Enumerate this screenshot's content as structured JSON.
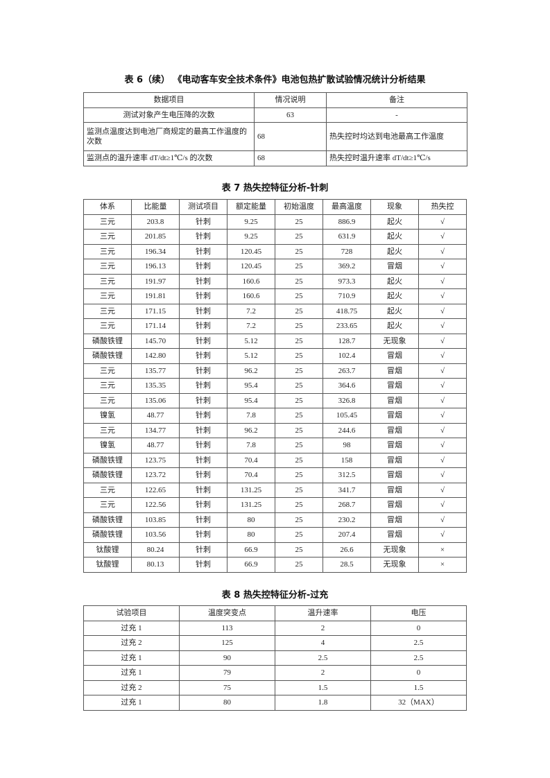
{
  "table6": {
    "title": "表 6（续） 《电动客车安全技术条件》电池包热扩散试验情况统计分析结果",
    "headers": [
      "数据项目",
      "情况说明",
      "备注"
    ],
    "rows": [
      [
        "测试对象产生电压降的次数",
        "63",
        "-"
      ],
      [
        "监测点温度达到电池厂商规定的最高工作温度的次数",
        "68",
        "热失控时均达到电池最高工作温度"
      ],
      [
        "监测点的温升速率 dT/dt≥1℃/s 的次数",
        "68",
        "热失控时温升速率 dT/dt≥1℃/s"
      ]
    ]
  },
  "table7": {
    "title": "表 7 热失控特征分析-针刺",
    "headers": [
      "体系",
      "比能量",
      "测试项目",
      "额定能量",
      "初始温度",
      "最高温度",
      "现象",
      "热失控"
    ],
    "rows": [
      [
        "三元",
        "203.8",
        "针刺",
        "9.25",
        "25",
        "886.9",
        "起火",
        "√"
      ],
      [
        "三元",
        "201.85",
        "针刺",
        "9.25",
        "25",
        "631.9",
        "起火",
        "√"
      ],
      [
        "三元",
        "196.34",
        "针刺",
        "120.45",
        "25",
        "728",
        "起火",
        "√"
      ],
      [
        "三元",
        "196.13",
        "针刺",
        "120.45",
        "25",
        "369.2",
        "冒烟",
        "√"
      ],
      [
        "三元",
        "191.97",
        "针刺",
        "160.6",
        "25",
        "973.3",
        "起火",
        "√"
      ],
      [
        "三元",
        "191.81",
        "针刺",
        "160.6",
        "25",
        "710.9",
        "起火",
        "√"
      ],
      [
        "三元",
        "171.15",
        "针刺",
        "7.2",
        "25",
        "418.75",
        "起火",
        "√"
      ],
      [
        "三元",
        "171.14",
        "针刺",
        "7.2",
        "25",
        "233.65",
        "起火",
        "√"
      ],
      [
        "磷酸铁锂",
        "145.70",
        "针刺",
        "5.12",
        "25",
        "128.7",
        "无现象",
        "√"
      ],
      [
        "磷酸铁锂",
        "142.80",
        "针刺",
        "5.12",
        "25",
        "102.4",
        "冒烟",
        "√"
      ],
      [
        "三元",
        "135.77",
        "针刺",
        "96.2",
        "25",
        "263.7",
        "冒烟",
        "√"
      ],
      [
        "三元",
        "135.35",
        "针刺",
        "95.4",
        "25",
        "364.6",
        "冒烟",
        "√"
      ],
      [
        "三元",
        "135.06",
        "针刺",
        "95.4",
        "25",
        "326.8",
        "冒烟",
        "√"
      ],
      [
        "镍氢",
        "48.77",
        "针刺",
        "7.8",
        "25",
        "105.45",
        "冒烟",
        "√"
      ],
      [
        "三元",
        "134.77",
        "针刺",
        "96.2",
        "25",
        "244.6",
        "冒烟",
        "√"
      ],
      [
        "镍氢",
        "48.77",
        "针刺",
        "7.8",
        "25",
        "98",
        "冒烟",
        "√"
      ],
      [
        "磷酸铁锂",
        "123.75",
        "针刺",
        "70.4",
        "25",
        "158",
        "冒烟",
        "√"
      ],
      [
        "磷酸铁锂",
        "123.72",
        "针刺",
        "70.4",
        "25",
        "312.5",
        "冒烟",
        "√"
      ],
      [
        "三元",
        "122.65",
        "针刺",
        "131.25",
        "25",
        "341.7",
        "冒烟",
        "√"
      ],
      [
        "三元",
        "122.56",
        "针刺",
        "131.25",
        "25",
        "268.7",
        "冒烟",
        "√"
      ],
      [
        "磷酸铁锂",
        "103.85",
        "针刺",
        "80",
        "25",
        "230.2",
        "冒烟",
        "√"
      ],
      [
        "磷酸铁锂",
        "103.56",
        "针刺",
        "80",
        "25",
        "207.4",
        "冒烟",
        "√"
      ],
      [
        "钛酸锂",
        "80.24",
        "针刺",
        "66.9",
        "25",
        "26.6",
        "无现象",
        "×"
      ],
      [
        "钛酸锂",
        "80.13",
        "针刺",
        "66.9",
        "25",
        "28.5",
        "无现象",
        "×"
      ]
    ]
  },
  "table8": {
    "title": "表 8 热失控特征分析-过充",
    "headers": [
      "试验项目",
      "温度突变点",
      "温升速率",
      "电压"
    ],
    "rows": [
      [
        "过充 1",
        "113",
        "2",
        "0"
      ],
      [
        "过充 2",
        "125",
        "4",
        "2.5"
      ],
      [
        "过充 1",
        "90",
        "2.5",
        "2.5"
      ],
      [
        "过充 1",
        "79",
        "2",
        "0"
      ],
      [
        "过充 2",
        "75",
        "1.5",
        "1.5"
      ],
      [
        "过充 1",
        "80",
        "1.8",
        "32（MAX）"
      ]
    ]
  }
}
